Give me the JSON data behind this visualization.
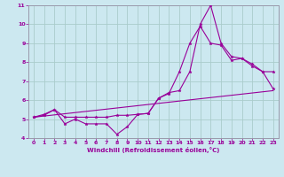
{
  "xlabel": "Windchill (Refroidissement éolien,°C)",
  "bg_color": "#cce8f0",
  "grid_color": "#aacccc",
  "line_color": "#990099",
  "spine_color": "#9999aa",
  "xlim": [
    -0.5,
    23.5
  ],
  "ylim": [
    4,
    11
  ],
  "xticks": [
    0,
    1,
    2,
    3,
    4,
    5,
    6,
    7,
    8,
    9,
    10,
    11,
    12,
    13,
    14,
    15,
    16,
    17,
    18,
    19,
    20,
    21,
    22,
    23
  ],
  "yticks": [
    4,
    5,
    6,
    7,
    8,
    9,
    10,
    11
  ],
  "line1_x": [
    0,
    1,
    2,
    3,
    4,
    5,
    6,
    7,
    8,
    9,
    10,
    11,
    12,
    13,
    14,
    15,
    16,
    17,
    18,
    19,
    20,
    21,
    22,
    23
  ],
  "line1_y": [
    5.1,
    5.25,
    5.5,
    4.75,
    5.0,
    4.75,
    4.75,
    4.75,
    4.2,
    4.6,
    5.25,
    5.3,
    6.1,
    6.4,
    6.5,
    7.5,
    10.0,
    11.0,
    9.0,
    8.3,
    8.2,
    7.8,
    7.5,
    6.6
  ],
  "line2_x": [
    0,
    1,
    2,
    3,
    4,
    5,
    6,
    7,
    8,
    9,
    10,
    11,
    12,
    13,
    14,
    15,
    16,
    17,
    18,
    19,
    20,
    21,
    22,
    23
  ],
  "line2_y": [
    5.1,
    5.2,
    5.5,
    5.1,
    5.1,
    5.1,
    5.1,
    5.1,
    5.2,
    5.2,
    5.25,
    5.3,
    6.1,
    6.35,
    7.5,
    9.0,
    9.9,
    9.0,
    8.9,
    8.1,
    8.2,
    7.9,
    7.5,
    7.5
  ],
  "line3_x": [
    0,
    23
  ],
  "line3_y": [
    5.1,
    6.5
  ]
}
